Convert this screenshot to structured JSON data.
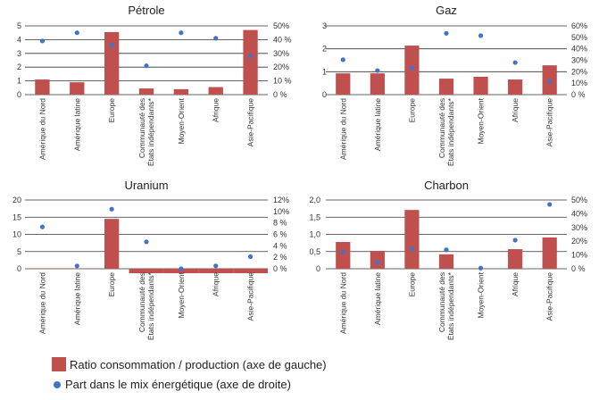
{
  "chart_data": [
    {
      "type": "bar",
      "title": "Pétrole",
      "categories": [
        "Amérique du Nord",
        "Amérique latine",
        "Europe",
        "Communauté des|États indépendants*",
        "Moyen-Orient",
        "Afrique",
        "Asie-Pacifique"
      ],
      "series": [
        {
          "name": "Ratio consommation / production (axe de gauche)",
          "kind": "bar",
          "axis": "left",
          "values": [
            1.1,
            0.9,
            4.55,
            0.45,
            0.4,
            0.55,
            4.7
          ]
        },
        {
          "name": "Part dans le mix énergétique (axe de droite)",
          "kind": "scatter",
          "axis": "right",
          "values": [
            39,
            45,
            36,
            21,
            45,
            41,
            28
          ]
        }
      ],
      "ylim": [
        0,
        5
      ],
      "yticks": [
        "0",
        "1",
        "2",
        "3",
        "4",
        "5"
      ],
      "y2lim": [
        0,
        50
      ],
      "y2ticks": [
        "0 %",
        "10 %",
        "20%",
        "30%",
        "40 %",
        "50%"
      ],
      "grid": true
    },
    {
      "type": "bar",
      "title": "Gaz",
      "categories": [
        "Amérique du Nord",
        "Amérique latine",
        "Europe",
        "Communauté des|États indépendants*",
        "Moyen-Orient",
        "Afrique",
        "Asie-Pacifique"
      ],
      "series": [
        {
          "name": "Ratio consommation / production (axe de gauche)",
          "kind": "bar",
          "axis": "left",
          "values": [
            0.93,
            0.93,
            2.14,
            0.7,
            0.78,
            0.66,
            1.28
          ]
        },
        {
          "name": "Part dans le mix énergétique (axe de droite)",
          "kind": "scatter",
          "axis": "right",
          "values": [
            30.5,
            21,
            23,
            53.5,
            51.5,
            28,
            11.5
          ]
        }
      ],
      "ylim": [
        0,
        3
      ],
      "yticks": [
        "0",
        "1",
        "2",
        "3"
      ],
      "y2lim": [
        0,
        60
      ],
      "y2ticks": [
        "0 %",
        "10%",
        "20%",
        "30%",
        "40%",
        "50%",
        "60%"
      ],
      "grid": true
    },
    {
      "type": "bar",
      "title": "Uranium",
      "categories": [
        "Amérique du Nord",
        "Amérique latine",
        "Europe",
        "Communauté des|États indépendants*",
        "Moyen-Orient",
        "Afrique",
        "Asie-Pacifique"
      ],
      "series": [
        {
          "name": "Ratio consommation / production (axe de gauche)",
          "kind": "bar",
          "axis": "left",
          "values": [
            -0.1,
            -0.1,
            14.5,
            -1.3,
            -1.3,
            -1.3,
            -1.3
          ]
        },
        {
          "name": "Part dans le mix énergétique (axe de droite)",
          "kind": "scatter",
          "axis": "right",
          "values": [
            7.3,
            0.5,
            10.4,
            4.7,
            0.0,
            0.5,
            2.1
          ]
        }
      ],
      "ylim": [
        0,
        20
      ],
      "yticks": [
        "0",
        "5",
        "10",
        "15",
        "20"
      ],
      "y2lim": [
        0,
        12
      ],
      "y2ticks": [
        "0 %",
        "2 %",
        "4 %",
        "6 %",
        "8 %",
        "10%",
        "12%"
      ],
      "grid": true
    },
    {
      "type": "bar",
      "title": "Charbon",
      "categories": [
        "Amérique du Nord",
        "Amérique latine",
        "Europe",
        "Communauté des|États indépendants*",
        "Moyen-Orient",
        "Afrique",
        "Asie-Pacifique"
      ],
      "series": [
        {
          "name": "Ratio consommation / production (axe de gauche)",
          "kind": "bar",
          "axis": "left",
          "values": [
            0.78,
            0.52,
            1.71,
            0.42,
            0.0,
            0.57,
            0.91
          ]
        },
        {
          "name": "Part dans le mix énergétique (axe de droite)",
          "kind": "scatter",
          "axis": "right",
          "values": [
            12,
            4.5,
            14.3,
            13.8,
            0.5,
            20.8,
            46.8
          ]
        }
      ],
      "ylim": [
        0,
        2
      ],
      "yticks": [
        "0",
        "0,5",
        "1,0",
        "1,5",
        "2,0"
      ],
      "y2lim": [
        0,
        50
      ],
      "y2ticks": [
        "0 %",
        "10%",
        "20%",
        "30%",
        "40%",
        "50%"
      ],
      "grid": true
    }
  ],
  "legend": {
    "bar_label": "Ratio consommation / production (axe de gauche)",
    "dot_label": "Part dans le mix énergétique (axe de droite)",
    "placement": "bottom-left"
  },
  "colors": {
    "bar": "#c0504d",
    "dot": "#4472c4",
    "grid": "#333333"
  }
}
